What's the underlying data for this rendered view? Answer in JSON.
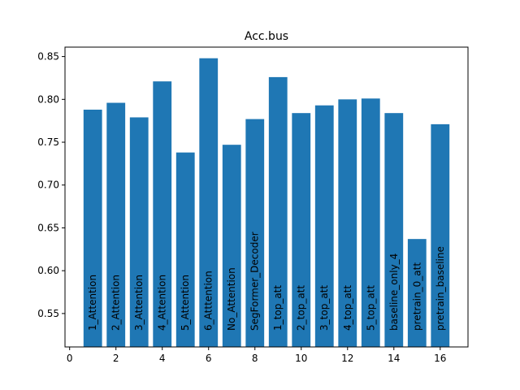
{
  "chart_data": {
    "type": "bar",
    "title": "Acc.bus",
    "xlabel": "",
    "ylabel": "",
    "xlim": [
      -0.2,
      17.2
    ],
    "ylim": [
      0.511,
      0.861
    ],
    "grid": false,
    "xticks": [
      0,
      2,
      4,
      6,
      8,
      10,
      12,
      14,
      16
    ],
    "yticks": [
      0.55,
      0.6,
      0.65,
      0.7,
      0.75,
      0.8,
      0.85
    ],
    "ytick_labels": [
      "0.55",
      "0.60",
      "0.65",
      "0.70",
      "0.75",
      "0.80",
      "0.85"
    ],
    "bar_color": "#1f77b4",
    "bars": [
      {
        "x": 1,
        "label": "1_Attention",
        "value": 0.788
      },
      {
        "x": 2,
        "label": "2_Attention",
        "value": 0.796
      },
      {
        "x": 3,
        "label": "3_Attention",
        "value": 0.779
      },
      {
        "x": 4,
        "label": "4_Attention",
        "value": 0.821
      },
      {
        "x": 5,
        "label": "5_Attention",
        "value": 0.738
      },
      {
        "x": 6,
        "label": "6_Atttention",
        "value": 0.848
      },
      {
        "x": 7,
        "label": "No_Attention",
        "value": 0.747
      },
      {
        "x": 8,
        "label": "SegFormer_Decoder",
        "value": 0.777
      },
      {
        "x": 9,
        "label": "1_top_att",
        "value": 0.826
      },
      {
        "x": 10,
        "label": "2_top_att",
        "value": 0.784
      },
      {
        "x": 11,
        "label": "3_top_att",
        "value": 0.793
      },
      {
        "x": 12,
        "label": "4_top_att",
        "value": 0.8
      },
      {
        "x": 13,
        "label": "5_top_att",
        "value": 0.801
      },
      {
        "x": 14,
        "label": "baseline_only_4",
        "value": 0.784
      },
      {
        "x": 15,
        "label": "pretrain_0_att",
        "value": 0.637
      },
      {
        "x": 16,
        "label": "pretrain_baseline",
        "value": 0.771
      }
    ]
  }
}
